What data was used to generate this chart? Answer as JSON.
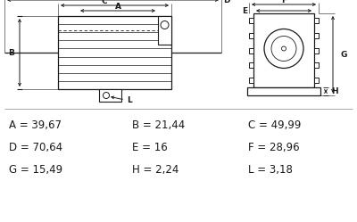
{
  "bg_color": "#ffffff",
  "line_color": "#1a1a1a",
  "text_color": "#1a1a1a",
  "params": [
    [
      "A",
      "39,67"
    ],
    [
      "B",
      "21,44"
    ],
    [
      "C",
      "49,99"
    ],
    [
      "D",
      "70,64"
    ],
    [
      "E",
      "16"
    ],
    [
      "F",
      "28,96"
    ],
    [
      "G",
      "15,49"
    ],
    [
      "H",
      "2,24"
    ],
    [
      "L",
      "3,18"
    ]
  ],
  "figsize": [
    4.0,
    2.49
  ],
  "dpi": 100
}
